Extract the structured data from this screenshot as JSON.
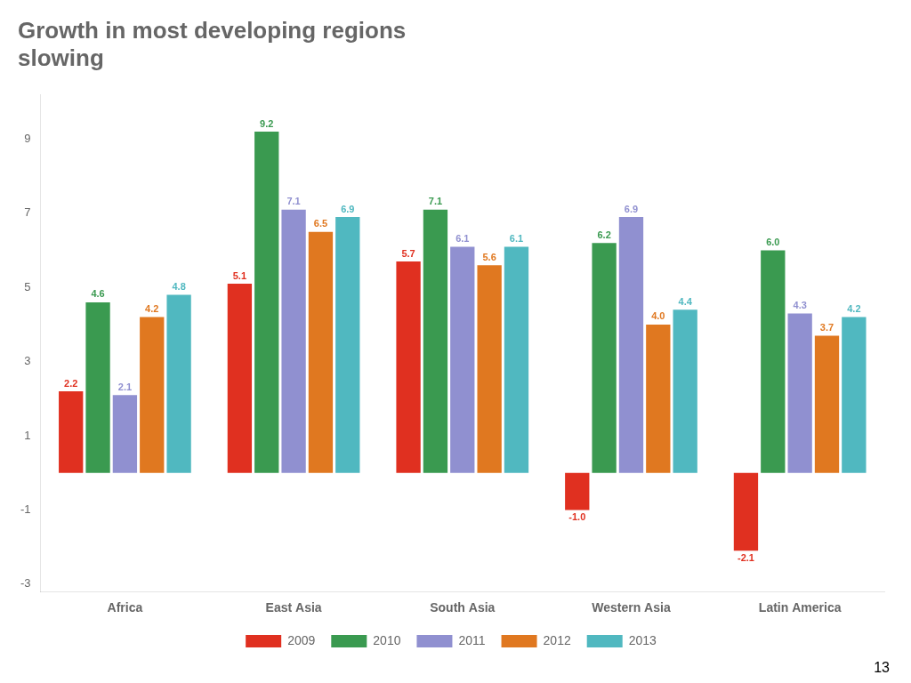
{
  "chart_data": {
    "type": "bar",
    "title": "Growth in most developing regions\nslowing",
    "categories": [
      "Africa",
      "East Asia",
      "South Asia",
      "Western Asia",
      "Latin America"
    ],
    "series": [
      {
        "name": "2009",
        "color": "#e03020",
        "values": [
          2.2,
          5.1,
          5.7,
          -1.0,
          -2.1
        ],
        "value_labels": [
          "2.2",
          "5.1",
          "5.7",
          "-1.0",
          "-2.1"
        ]
      },
      {
        "name": "2010",
        "color": "#3a9a50",
        "values": [
          4.6,
          9.2,
          7.1,
          6.2,
          6.0
        ],
        "value_labels": [
          "4.6",
          "9.2",
          "7.1",
          "6.2",
          "6.0"
        ]
      },
      {
        "name": "2011",
        "color": "#9090d0",
        "values": [
          2.1,
          7.1,
          6.1,
          6.9,
          4.3
        ],
        "value_labels": [
          "2.1",
          "7.1",
          "6.1",
          "6.9",
          "4.3"
        ]
      },
      {
        "name": "2012",
        "color": "#e07820",
        "values": [
          4.2,
          6.5,
          5.6,
          4.0,
          3.7
        ],
        "value_labels": [
          "4.2",
          "6.5",
          "5.6",
          "4.0",
          "3.7"
        ]
      },
      {
        "name": "2013",
        "color": "#50b8c0",
        "values": [
          4.8,
          6.9,
          6.1,
          4.4,
          4.2
        ],
        "value_labels": [
          "4.8",
          "6.9",
          "6.1",
          "4.4",
          "4.2"
        ]
      }
    ],
    "ylim": [
      -3.2,
      10.2
    ],
    "yticks": [
      -3,
      -1,
      1,
      3,
      5,
      7,
      9
    ],
    "grid": false,
    "legend": "bottom",
    "data_labels": true,
    "annotations": [
      "13"
    ]
  }
}
